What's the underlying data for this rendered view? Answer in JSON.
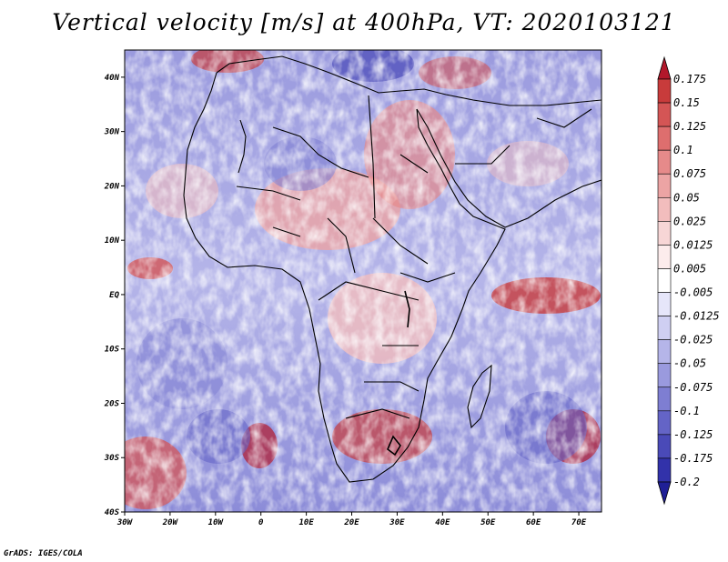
{
  "title": "Vertical velocity [m/s] at 400hPa, VT: 2020103121",
  "credit": "GrADS: IGES/COLA",
  "map": {
    "lat_ticks": [
      "40N",
      "30N",
      "20N",
      "10N",
      "EQ",
      "10S",
      "20S",
      "30S",
      "40S"
    ],
    "lon_ticks": [
      "30W",
      "20W",
      "10W",
      "0",
      "10E",
      "20E",
      "30E",
      "40E",
      "50E",
      "60E",
      "70E"
    ],
    "lat_range": [
      -40,
      45
    ],
    "lon_range": [
      -30,
      75
    ],
    "variable": "vertical velocity",
    "level_hPa": 400
  },
  "colorbar": {
    "labels": [
      "0.175",
      "0.15",
      "0.125",
      "0.1",
      "0.075",
      "0.05",
      "0.025",
      "0.0125",
      "0.005",
      "-0.005",
      "-0.0125",
      "-0.025",
      "-0.05",
      "-0.075",
      "-0.1",
      "-0.125",
      "-0.175",
      "-0.2"
    ],
    "colors": [
      "#b2182b",
      "#c83b3b",
      "#d45555",
      "#de6e6e",
      "#e68a8a",
      "#eca4a4",
      "#f2bdbd",
      "#f7d6d6",
      "#fcecec",
      "#ffffff",
      "#e6e6fa",
      "#cfcff2",
      "#b5b5e9",
      "#9a9ade",
      "#7e7ed2",
      "#6464c6",
      "#4a4ab8",
      "#3232aa",
      "#1f1f96"
    ]
  }
}
